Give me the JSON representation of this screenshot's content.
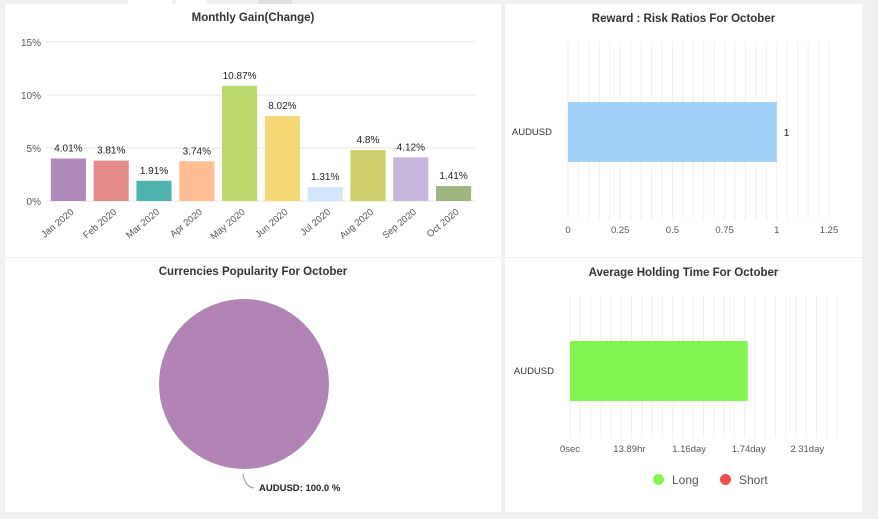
{
  "chart_data": [
    {
      "type": "bar",
      "title": "Monthly Gain(Change)",
      "categories": [
        "Jan 2020",
        "Feb 2020",
        "Mar 2020",
        "Apr 2020",
        "May 2020",
        "Jun 2020",
        "Jul 2020",
        "Aug 2020",
        "Sep 2020",
        "Oct 2020"
      ],
      "values": [
        4.01,
        3.81,
        1.91,
        3.74,
        10.87,
        8.02,
        1.31,
        4.8,
        4.12,
        1.41
      ],
      "value_labels": [
        "4.01%",
        "3.81%",
        "1.91%",
        "3.74%",
        "10.87%",
        "8.02%",
        "1.31%",
        "4.8%",
        "4.12%",
        "1.41%"
      ],
      "colors": [
        "#b28ab9",
        "#e38a8a",
        "#4fb3b0",
        "#ffbe94",
        "#bcd96e",
        "#f6d776",
        "#d2e7fb",
        "#cdcd6c",
        "#c8b6db",
        "#9db57f"
      ],
      "ylim": [
        0,
        15
      ],
      "yticks": [
        0,
        5,
        10,
        15
      ],
      "ytick_labels": [
        "0%",
        "5%",
        "10%",
        "15%"
      ],
      "grid": true
    },
    {
      "type": "bar",
      "orientation": "horizontal",
      "title": "Reward : Risk Ratios For October",
      "categories": [
        "AUDUSD"
      ],
      "values": [
        1
      ],
      "value_labels": [
        "1"
      ],
      "color": "#a1d1f7",
      "xlim": [
        0,
        1.25
      ],
      "xticks": [
        0,
        0.25,
        0.5,
        0.75,
        1,
        1.25
      ],
      "xtick_labels": [
        "0",
        "0.25",
        "0.5",
        "0.75",
        "1",
        "1.25"
      ],
      "grid": true
    },
    {
      "type": "pie",
      "title": "Currencies Popularity For October",
      "slices": [
        {
          "label": "AUDUSD",
          "value": 100.0,
          "display": "AUDUSD: 100.0 %",
          "color": "#b284b6"
        }
      ]
    },
    {
      "type": "bar",
      "orientation": "horizontal",
      "title": "Average Holding Time For October",
      "categories": [
        "AUDUSD"
      ],
      "series": [
        {
          "name": "Long",
          "values": [
            1.73
          ],
          "color": "#82f550"
        },
        {
          "name": "Short",
          "values": [
            0
          ],
          "color": "#f04e4e"
        }
      ],
      "xlim": [
        0,
        2.6
      ],
      "xticks": [
        0,
        0.5787,
        1.16,
        1.74,
        2.31
      ],
      "xtick_labels": [
        "0sec",
        "13.89hr",
        "1.16day",
        "1.74day",
        "2.31day"
      ],
      "legend": "bottom",
      "grid": true
    }
  ]
}
